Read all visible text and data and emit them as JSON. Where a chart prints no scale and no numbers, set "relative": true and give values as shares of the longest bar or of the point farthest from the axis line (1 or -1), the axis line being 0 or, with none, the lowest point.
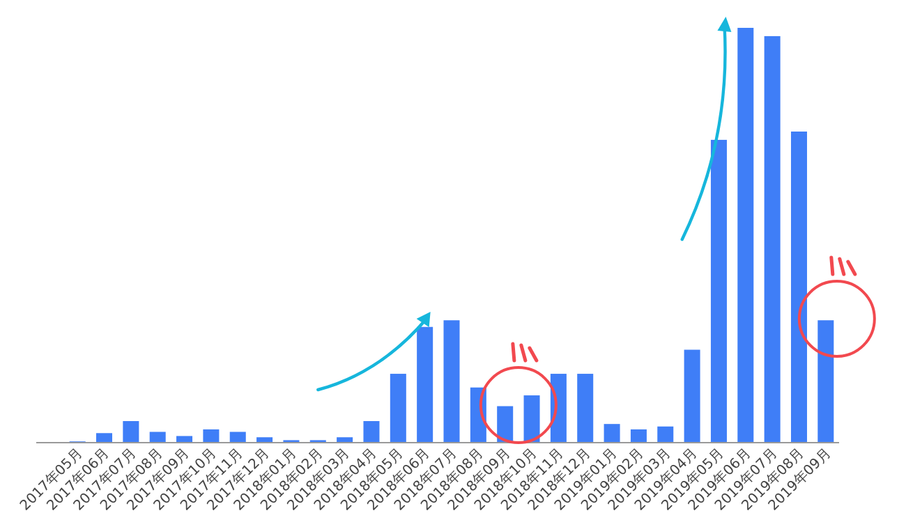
{
  "chart_data": {
    "type": "bar",
    "relative": true,
    "color": "#3f7ef7",
    "categories": [
      "2017年05月",
      "2017年06月",
      "2017年07月",
      "2017年08月",
      "2017年09月",
      "2017年10月",
      "2017年11月",
      "2017年12月",
      "2018年01月",
      "2018年02月",
      "2018年03月",
      "2018年04月",
      "2018年05月",
      "2018年06月",
      "2018年07月",
      "2018年08月",
      "2018年09月",
      "2018年10月",
      "2018年11月",
      "2018年12月",
      "2019年01月",
      "2019年02月",
      "2019年03月",
      "2019年04月",
      "2019年05月",
      "2019年06月",
      "2019年07月",
      "2019年08月",
      "2019年09月"
    ],
    "values": [
      0.003,
      0.023,
      0.052,
      0.026,
      0.016,
      0.032,
      0.026,
      0.013,
      0.006,
      0.006,
      0.013,
      0.052,
      0.166,
      0.279,
      0.295,
      0.133,
      0.088,
      0.114,
      0.166,
      0.166,
      0.045,
      0.032,
      0.039,
      0.224,
      0.73,
      1,
      0.98,
      0.75,
      0.295
    ]
  }
}
